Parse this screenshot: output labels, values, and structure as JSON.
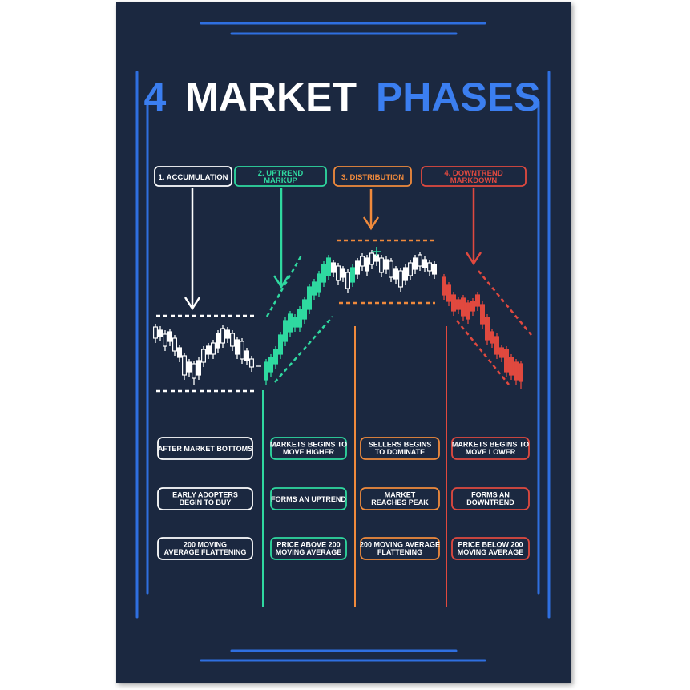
{
  "title": {
    "number": "4",
    "word1": "MARKET",
    "word2": "PHASES"
  },
  "colors": {
    "background": "#1b2840",
    "frame": "#2f6fe0",
    "title_accent": "#3b7ef0",
    "white": "#ffffff",
    "green": "#2fd9a0",
    "orange": "#f08a3c",
    "red": "#e0493f"
  },
  "phases": [
    {
      "id": "accumulation",
      "color": "#ffffff",
      "label": [
        "1. ACCUMULATION"
      ],
      "boxes": [
        [
          "AFTER MARKET BOTTOMS"
        ],
        [
          "EARLY ADOPTERS",
          "BEGIN TO BUY"
        ],
        [
          "200 MOVING",
          "AVERAGE FLATTENING"
        ]
      ]
    },
    {
      "id": "uptrend",
      "color": "#2fd9a0",
      "label": [
        "2. UPTREND",
        "MARKUP"
      ],
      "boxes": [
        [
          "MARKETS BEGINS TO",
          "MOVE HIGHER"
        ],
        [
          "FORMS AN UPTREND"
        ],
        [
          "PRICE ABOVE 200",
          "MOVING AVERAGE"
        ]
      ]
    },
    {
      "id": "distribution",
      "color": "#f08a3c",
      "label": [
        "3. DISTRIBUTION"
      ],
      "boxes": [
        [
          "SELLERS BEGINS",
          "TO DOMINATE"
        ],
        [
          "MARKET",
          "REACHES PEAK"
        ],
        [
          "200 MOVING AVERAGE",
          "FLATTENING"
        ]
      ]
    },
    {
      "id": "downtrend",
      "color": "#e0493f",
      "label": [
        "4. DOWNTREND",
        "MARKDOWN"
      ],
      "boxes": [
        [
          "MARKETS BEGINS TO",
          "MOVE LOWER"
        ],
        [
          "FORMS AN",
          "DOWNTREND"
        ],
        [
          "PRICE BELOW 200",
          "MOVING AVERAGE"
        ]
      ]
    }
  ]
}
